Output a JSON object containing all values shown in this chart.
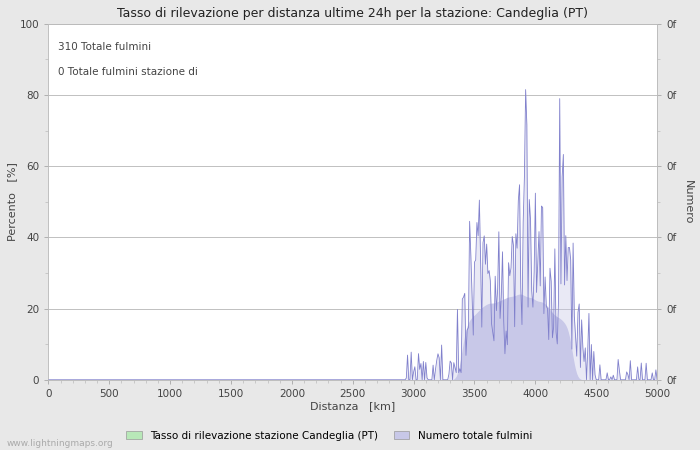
{
  "title": "Tasso di rilevazione per distanza ultime 24h per la stazione: Candeglia (PT)",
  "xlabel": "Distanza   [km]",
  "ylabel_left": "Percento   [%]",
  "ylabel_right": "Numero",
  "annotation1": "310 Totale fulmini",
  "annotation2": "0 Totale fulmini stazione di",
  "xlim": [
    0,
    5000
  ],
  "ylim": [
    0,
    100
  ],
  "xticks": [
    0,
    500,
    1000,
    1500,
    2000,
    2500,
    3000,
    3500,
    4000,
    4500,
    5000
  ],
  "yticks": [
    0,
    20,
    40,
    60,
    80,
    100
  ],
  "bg_color": "#e8e8e8",
  "plot_bg_color": "#ffffff",
  "grid_color": "#c0c0c0",
  "line_color": "#8080cc",
  "fill_color_blue": "#c8c8e8",
  "fill_color_green": "#b8e8b8",
  "watermark": "www.lightningmaps.org",
  "legend_label1": "Tasso di rilevazione stazione Candeglia (PT)",
  "legend_label2": "Numero totale fulmini",
  "seed": 42
}
